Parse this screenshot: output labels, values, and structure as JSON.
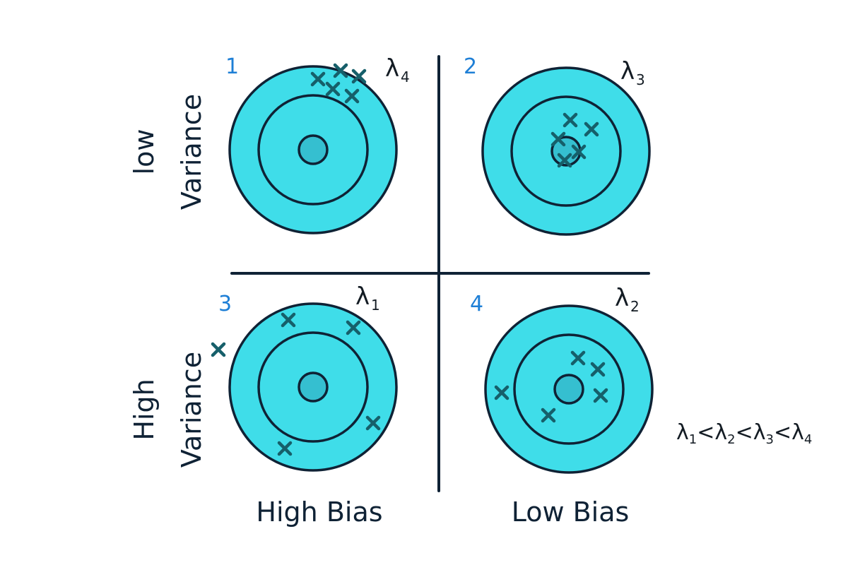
{
  "colors": {
    "ring_fill": "#3fdde9",
    "bullseye_fill": "#35bfd0",
    "stroke": "#0f2235",
    "marker": "#165f6a",
    "quadrant_number": "#1e7fd6",
    "lambda_text": "#141c24"
  },
  "marker_icon": "x-mark-icon",
  "row_labels": {
    "top": {
      "line1": "low",
      "line2": "Variance"
    },
    "bottom": {
      "line1": "High",
      "line2": "Variance"
    }
  },
  "column_labels": {
    "left": "High Bias",
    "right": "Low Bias"
  },
  "ordering": {
    "parts": [
      {
        "sym": "λ",
        "sub": "1"
      },
      {
        "op": "<"
      },
      {
        "sym": "λ",
        "sub": "2"
      },
      {
        "op": "<"
      },
      {
        "sym": "λ",
        "sub": "3"
      },
      {
        "op": "<"
      },
      {
        "sym": "λ",
        "sub": "4"
      }
    ]
  },
  "quadrants": [
    {
      "number": "1",
      "lambda": "λ",
      "lambda_sub": "4"
    },
    {
      "number": "2",
      "lambda": "λ",
      "lambda_sub": "3"
    },
    {
      "number": "3",
      "lambda": "λ",
      "lambda_sub": "1"
    },
    {
      "number": "4",
      "lambda": "λ",
      "lambda_sub": "2"
    }
  ]
}
